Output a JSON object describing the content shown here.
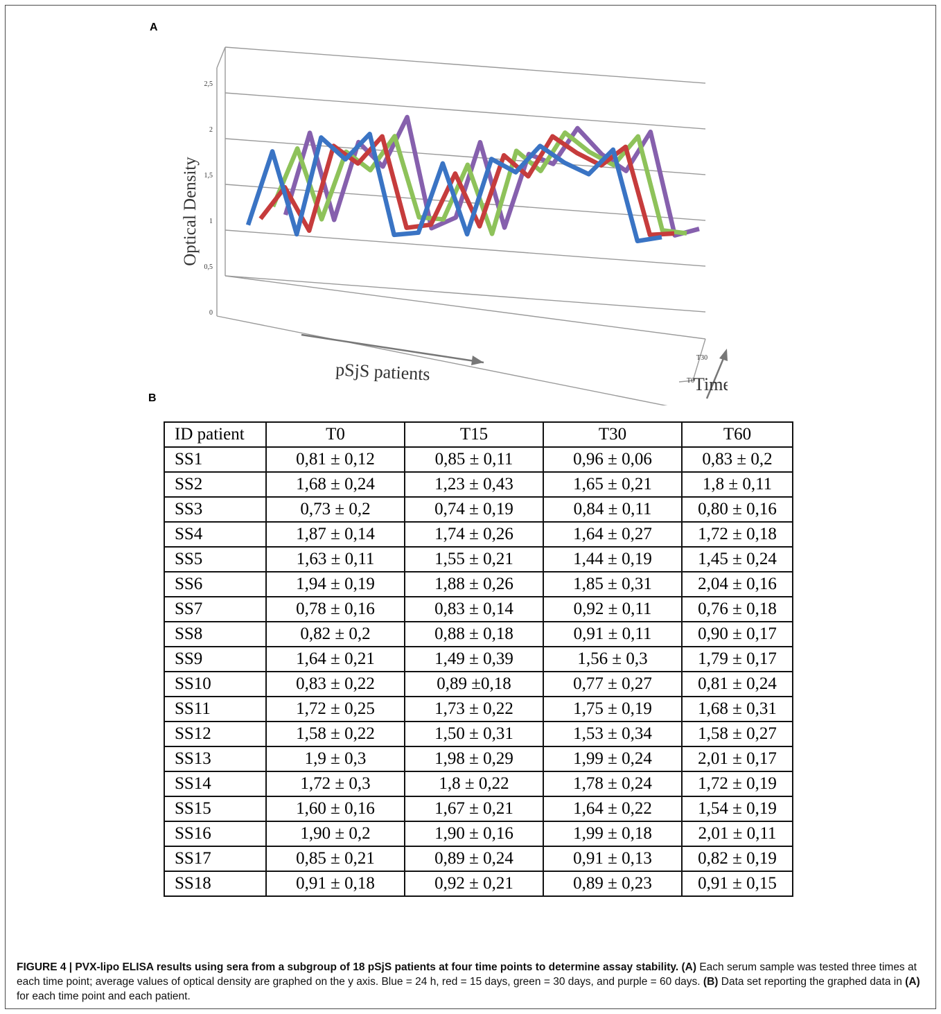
{
  "panels": {
    "a_label": "A",
    "b_label": "B"
  },
  "chart_data": {
    "type": "line",
    "ylabel": "Optical Density",
    "xlabel": "pSjS patients",
    "depth_label": "Time",
    "depth_ticks": [
      "T0",
      "T30"
    ],
    "y_ticks": [
      "0",
      "0,5",
      "1",
      "1,5",
      "2",
      "2,5"
    ],
    "ylim": [
      0,
      2.5
    ],
    "categories": [
      "SS1",
      "SS2",
      "SS3",
      "SS4",
      "SS5",
      "SS6",
      "SS7",
      "SS8",
      "SS9",
      "SS10",
      "SS11",
      "SS12",
      "SS13",
      "SS14",
      "SS15",
      "SS16",
      "SS17",
      "SS18"
    ],
    "series": [
      {
        "color": "#3a74c4",
        "values": [
          0.81,
          1.68,
          0.73,
          1.87,
          1.63,
          1.94,
          0.78,
          0.82,
          1.64,
          0.83,
          1.72,
          1.58,
          1.9,
          1.72,
          1.6,
          1.9,
          0.85,
          0.91
        ]
      },
      {
        "color": "#c63c3c",
        "values": [
          0.85,
          1.23,
          0.74,
          1.74,
          1.55,
          1.88,
          0.83,
          0.88,
          1.49,
          0.89,
          1.73,
          1.5,
          1.98,
          1.8,
          1.67,
          1.9,
          0.89,
          0.92
        ]
      },
      {
        "color": "#8ec25a",
        "values": [
          0.96,
          1.65,
          0.84,
          1.64,
          1.44,
          1.85,
          0.92,
          0.91,
          1.56,
          0.77,
          1.75,
          1.53,
          1.99,
          1.78,
          1.64,
          1.99,
          0.91,
          0.89
        ]
      },
      {
        "color": "#8660ad",
        "values": [
          0.83,
          1.8,
          0.8,
          1.72,
          1.45,
          2.04,
          0.76,
          0.9,
          1.79,
          0.81,
          1.68,
          1.58,
          2.01,
          1.72,
          1.54,
          2.01,
          0.82,
          0.91
        ]
      }
    ]
  },
  "table": {
    "headers": [
      "ID patient",
      "T0",
      "T15",
      "T30",
      "T60"
    ],
    "rows": [
      [
        "SS1",
        "0,81 ± 0,12",
        "0,85 ± 0,11",
        "0,96 ± 0,06",
        "0,83 ± 0,2"
      ],
      [
        "SS2",
        "1,68 ± 0,24",
        "1,23 ± 0,43",
        "1,65 ± 0,21",
        "1,8 ± 0,11"
      ],
      [
        "SS3",
        "0,73 ± 0,2",
        "0,74 ± 0,19",
        "0,84 ± 0,11",
        "0,80 ± 0,16"
      ],
      [
        "SS4",
        "1,87 ± 0,14",
        "1,74 ± 0,26",
        "1,64 ± 0,27",
        "1,72 ± 0,18"
      ],
      [
        "SS5",
        "1,63 ± 0,11",
        "1,55 ± 0,21",
        "1,44 ± 0,19",
        "1,45 ± 0,24"
      ],
      [
        "SS6",
        "1,94 ± 0,19",
        "1,88 ± 0,26",
        "1,85 ± 0,31",
        "2,04 ± 0,16"
      ],
      [
        "SS7",
        "0,78 ± 0,16",
        "0,83 ± 0,14",
        "0,92 ± 0,11",
        "0,76 ± 0,18"
      ],
      [
        "SS8",
        "0,82 ± 0,2",
        "0,88 ± 0,18",
        "0,91 ± 0,11",
        "0,90 ± 0,17"
      ],
      [
        "SS9",
        "1,64 ± 0,21",
        "1,49 ± 0,39",
        "1,56 ± 0,3",
        "1,79 ± 0,17"
      ],
      [
        "SS10",
        "0,83 ± 0,22",
        "0,89 ±0,18",
        "0,77 ± 0,27",
        "0,81 ± 0,24"
      ],
      [
        "SS11",
        "1,72 ± 0,25",
        "1,73 ± 0,22",
        "1,75 ± 0,19",
        "1,68 ± 0,31"
      ],
      [
        "SS12",
        "1,58 ± 0,22",
        "1,50 ± 0,31",
        "1,53 ± 0,34",
        "1,58 ± 0,27"
      ],
      [
        "SS13",
        "1,9 ± 0,3",
        "1,98 ± 0,29",
        "1,99 ± 0,24",
        "2,01 ± 0,17"
      ],
      [
        "SS14",
        "1,72 ± 0,3",
        "1,8 ± 0,22",
        "1,78 ± 0,24",
        "1,72 ± 0,19"
      ],
      [
        "SS15",
        "1,60 ± 0,16",
        "1,67 ± 0,21",
        "1,64 ± 0,22",
        "1,54 ± 0,19"
      ],
      [
        "SS16",
        "1,90 ± 0,2",
        "1,90 ± 0,16",
        "1,99 ± 0,18",
        "2,01 ± 0,11"
      ],
      [
        "SS17",
        "0,85 ± 0,21",
        "0,89 ± 0,24",
        "0,91 ± 0,13",
        "0,82 ± 0,19"
      ],
      [
        "SS18",
        "0,91 ± 0,18",
        "0,92 ± 0,21",
        "0,89 ± 0,23",
        "0,91 ± 0,15"
      ]
    ]
  },
  "caption": {
    "figure_title": "FIGURE 4 | PVX-lipo ELISA results using sera from a subgroup of 18 pSjS patients at four time points to determine assay stability.",
    "a_ref": "(A)",
    "text1": " Each serum sample was tested three times at each time point; average values of optical density are graphed on the y axis. Blue = 24 h, red = 15 days, green = 30 days, and purple = 60 days. ",
    "b_ref": "(B)",
    "text2": " Data set reporting the graphed data in ",
    "a_ref2": "(A)",
    "text3": " for each time point and each patient."
  }
}
